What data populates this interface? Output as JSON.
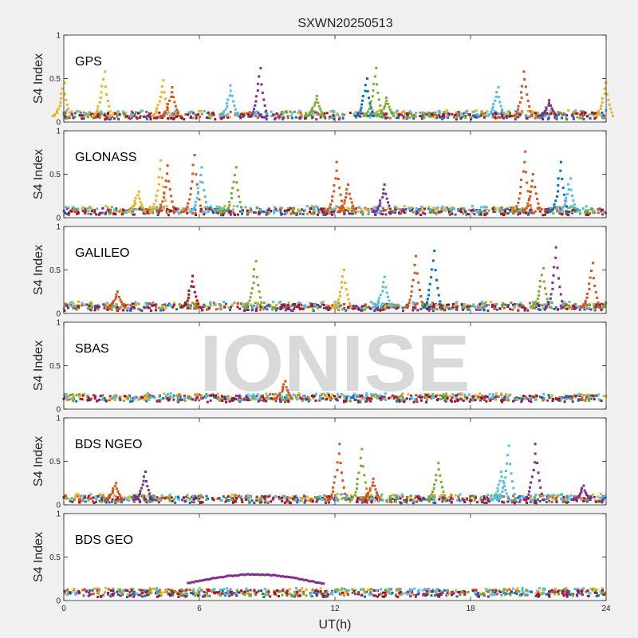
{
  "chart_data": {
    "type": "scatter",
    "title": "SXWN20250513",
    "xlabel": "UT(h)",
    "xlim": [
      0,
      24
    ],
    "xticks": [
      "0",
      "6",
      "12",
      "18",
      "24"
    ],
    "ylabel": "S4 Index",
    "ylim": [
      0,
      1
    ],
    "yticks": [
      "0",
      "0.5",
      "1"
    ],
    "watermark": "IONISE",
    "grid": false,
    "series_colors": [
      "#0072BD",
      "#D95319",
      "#EDB120",
      "#7E2F8E",
      "#77AC30",
      "#4DBEEE",
      "#A2142F"
    ],
    "panels": [
      {
        "label": "GPS",
        "baseline": 0.07,
        "peaks": [
          {
            "x": 0.0,
            "y": 0.45,
            "color": "#EDB120"
          },
          {
            "x": 1.8,
            "y": 0.58,
            "color": "#EDB120"
          },
          {
            "x": 4.4,
            "y": 0.48,
            "color": "#EDB120"
          },
          {
            "x": 4.8,
            "y": 0.4,
            "color": "#D95319"
          },
          {
            "x": 7.4,
            "y": 0.42,
            "color": "#4DBEEE"
          },
          {
            "x": 8.7,
            "y": 0.62,
            "color": "#7E2F8E"
          },
          {
            "x": 11.2,
            "y": 0.3,
            "color": "#77AC30"
          },
          {
            "x": 13.4,
            "y": 0.5,
            "color": "#0072BD"
          },
          {
            "x": 13.8,
            "y": 0.62,
            "color": "#77AC30"
          },
          {
            "x": 14.3,
            "y": 0.28,
            "color": "#77AC30"
          },
          {
            "x": 19.2,
            "y": 0.4,
            "color": "#4DBEEE"
          },
          {
            "x": 20.4,
            "y": 0.58,
            "color": "#D95319"
          },
          {
            "x": 21.5,
            "y": 0.25,
            "color": "#7E2F8E"
          },
          {
            "x": 24.0,
            "y": 0.45,
            "color": "#EDB120"
          }
        ]
      },
      {
        "label": "GLONASS",
        "baseline": 0.07,
        "peaks": [
          {
            "x": 3.3,
            "y": 0.3,
            "color": "#EDB120"
          },
          {
            "x": 4.3,
            "y": 0.66,
            "color": "#EDB120"
          },
          {
            "x": 4.6,
            "y": 0.6,
            "color": "#D95319"
          },
          {
            "x": 5.8,
            "y": 0.72,
            "color": "#D95319"
          },
          {
            "x": 6.1,
            "y": 0.58,
            "color": "#4DBEEE"
          },
          {
            "x": 7.6,
            "y": 0.58,
            "color": "#77AC30"
          },
          {
            "x": 12.1,
            "y": 0.64,
            "color": "#D95319"
          },
          {
            "x": 12.6,
            "y": 0.38,
            "color": "#D95319"
          },
          {
            "x": 14.2,
            "y": 0.38,
            "color": "#7E2F8E"
          },
          {
            "x": 20.4,
            "y": 0.76,
            "color": "#D95319"
          },
          {
            "x": 20.8,
            "y": 0.5,
            "color": "#D95319"
          },
          {
            "x": 22.0,
            "y": 0.64,
            "color": "#0072BD"
          },
          {
            "x": 22.4,
            "y": 0.45,
            "color": "#4DBEEE"
          }
        ]
      },
      {
        "label": "GALILEO",
        "baseline": 0.07,
        "peaks": [
          {
            "x": 2.4,
            "y": 0.25,
            "color": "#D95319"
          },
          {
            "x": 5.7,
            "y": 0.43,
            "color": "#A2142F"
          },
          {
            "x": 8.5,
            "y": 0.6,
            "color": "#77AC30"
          },
          {
            "x": 12.4,
            "y": 0.5,
            "color": "#EDB120"
          },
          {
            "x": 14.2,
            "y": 0.42,
            "color": "#4DBEEE"
          },
          {
            "x": 15.6,
            "y": 0.66,
            "color": "#D95319"
          },
          {
            "x": 16.4,
            "y": 0.72,
            "color": "#0072BD"
          },
          {
            "x": 21.2,
            "y": 0.52,
            "color": "#77AC30"
          },
          {
            "x": 21.8,
            "y": 0.76,
            "color": "#7E2F8E"
          },
          {
            "x": 23.4,
            "y": 0.58,
            "color": "#D95319"
          }
        ]
      },
      {
        "label": "SBAS",
        "baseline": 0.12,
        "peaks": [
          {
            "x": 9.8,
            "y": 0.32,
            "color": "#D95319"
          }
        ]
      },
      {
        "label": "BDS NGEO",
        "baseline": 0.06,
        "peaks": [
          {
            "x": 2.3,
            "y": 0.25,
            "color": "#D95319"
          },
          {
            "x": 3.6,
            "y": 0.38,
            "color": "#7E2F8E"
          },
          {
            "x": 12.2,
            "y": 0.7,
            "color": "#D95319"
          },
          {
            "x": 13.2,
            "y": 0.64,
            "color": "#77AC30"
          },
          {
            "x": 13.7,
            "y": 0.3,
            "color": "#D95319"
          },
          {
            "x": 16.6,
            "y": 0.48,
            "color": "#77AC30"
          },
          {
            "x": 19.4,
            "y": 0.38,
            "color": "#4DBEEE"
          },
          {
            "x": 19.7,
            "y": 0.68,
            "color": "#4DBEEE"
          },
          {
            "x": 20.9,
            "y": 0.7,
            "color": "#7E2F8E"
          },
          {
            "x": 23.0,
            "y": 0.22,
            "color": "#7E2F8E"
          }
        ]
      },
      {
        "label": "BDS GEO",
        "baseline": 0.08,
        "peaks": [],
        "arc": {
          "x_start": 5.5,
          "x_end": 11.5,
          "y_start": 0.2,
          "y_peak": 0.3,
          "y_end": 0.19,
          "color": "#7E2F8E"
        }
      }
    ]
  }
}
